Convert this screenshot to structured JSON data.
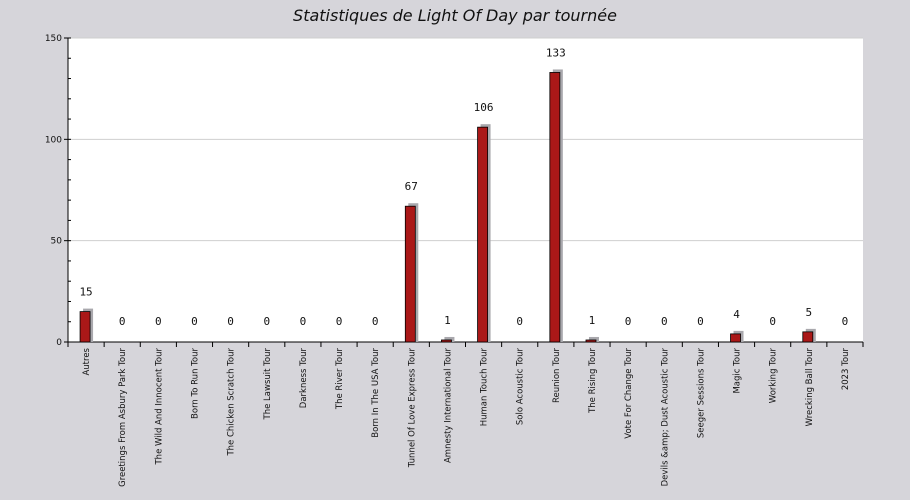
{
  "chart_data": {
    "type": "bar",
    "title": "Statistiques de Light Of Day par tournée",
    "xlabel": "",
    "ylabel": "",
    "ylim": [
      0,
      150
    ],
    "yticks": [
      0,
      50,
      100,
      150
    ],
    "grid": true,
    "categories": [
      "Autres",
      "Greetings From Asbury Park Tour",
      "The Wild And Innocent Tour",
      "Born To Run Tour",
      "The Chicken Scratch Tour",
      "The Lawsuit Tour",
      "Darkness Tour",
      "The River Tour",
      "Born In The USA Tour",
      "Tunnel Of Love Express Tour",
      "Amnesty International Tour",
      "Human Touch Tour",
      "Solo Acoustic Tour",
      "Reunion Tour",
      "The Rising Tour",
      "Vote For Change Tour",
      "Devils &amp; Dust Acoustic Tour",
      "Seeger Sessions Tour",
      "Magic Tour",
      "Working Tour",
      "Wrecking Ball Tour",
      "2023 Tour"
    ],
    "values": [
      15,
      0,
      0,
      0,
      0,
      0,
      0,
      0,
      0,
      67,
      1,
      106,
      0,
      133,
      1,
      0,
      0,
      0,
      4,
      0,
      5,
      0
    ],
    "colors": {
      "bar": "#aa1818",
      "bar_shadow": "#a9a8ad",
      "plot_bg": "#ffffff",
      "page_bg": "#d6d5da",
      "grid": "#cfcfcf"
    }
  }
}
